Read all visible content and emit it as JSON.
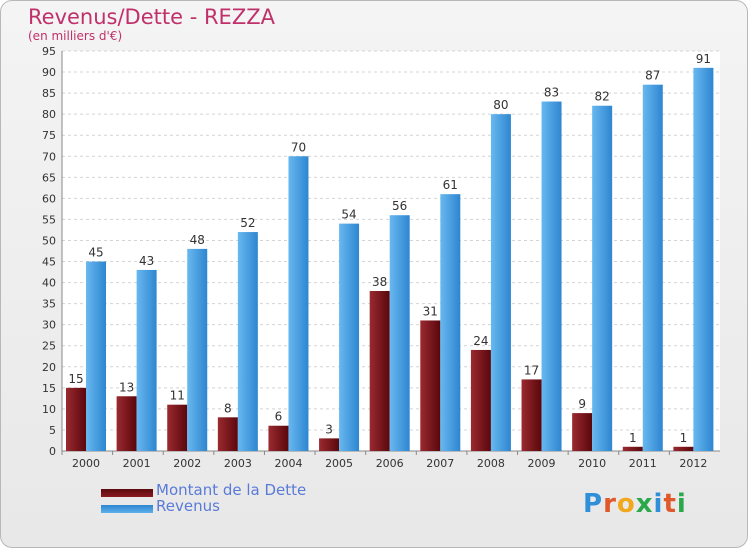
{
  "title": "Revenus/Dette - REZZA",
  "subtitle": "(en milliers d'€)",
  "logo_text": "Proxiti",
  "colors": {
    "debt": "#7a0f14",
    "revenue": "#4da3e6",
    "title": "#c0306a",
    "axis_text": "#333333",
    "legend_text": "#5a7ad8"
  },
  "chart_data": {
    "type": "bar",
    "categories": [
      "2000",
      "2001",
      "2002",
      "2003",
      "2004",
      "2005",
      "2006",
      "2007",
      "2008",
      "2009",
      "2010",
      "2011",
      "2012"
    ],
    "series": [
      {
        "name": "Montant de la Dette",
        "values": [
          15,
          13,
          11,
          8,
          6,
          3,
          38,
          31,
          24,
          17,
          9,
          1,
          1
        ]
      },
      {
        "name": "Revenus",
        "values": [
          45,
          43,
          48,
          52,
          70,
          54,
          56,
          61,
          80,
          83,
          82,
          87,
          91
        ]
      }
    ],
    "ylim": [
      0,
      95
    ],
    "yticks": [
      0,
      5,
      10,
      15,
      20,
      25,
      30,
      35,
      40,
      45,
      50,
      55,
      60,
      65,
      70,
      75,
      80,
      85,
      90,
      95
    ],
    "grid": true,
    "legend_position": "bottom-left"
  }
}
